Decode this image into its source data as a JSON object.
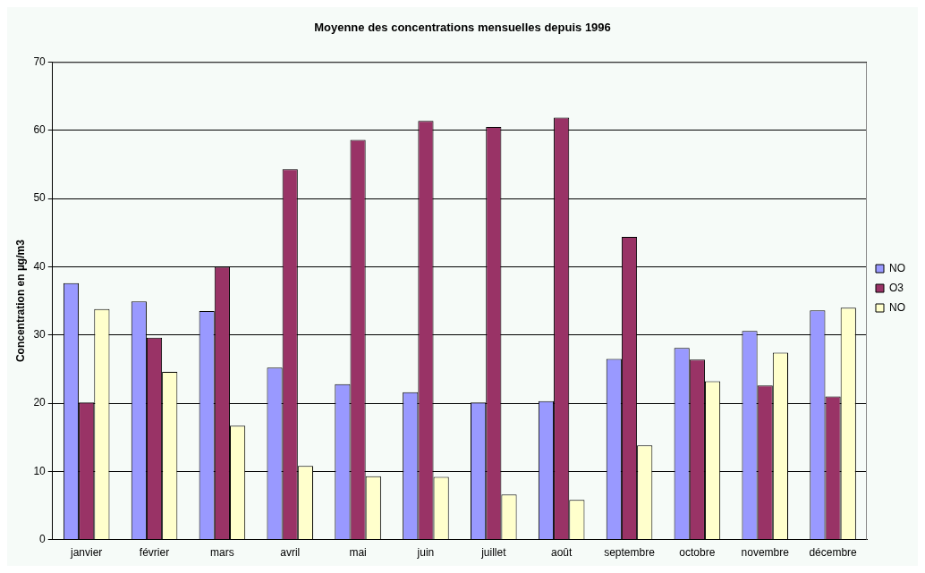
{
  "chart_data": {
    "type": "bar",
    "title": "Moyenne des concentrations mensuelles depuis 1996",
    "ylabel": "Concentration en µg/m3",
    "categories": [
      "janvier",
      "février",
      "mars",
      "avril",
      "mai",
      "juin",
      "juillet",
      "août",
      "septembre",
      "octobre",
      "novembre",
      "décembre"
    ],
    "series": [
      {
        "name": "NO",
        "color": "#9999ff",
        "values": [
          37.6,
          34.9,
          33.5,
          25.2,
          22.8,
          21.6,
          20.1,
          20.3,
          26.5,
          28.1,
          30.6,
          33.6
        ]
      },
      {
        "name": "O3",
        "color": "#993366",
        "values": [
          20.1,
          29.6,
          40.0,
          54.3,
          58.6,
          61.4,
          60.5,
          61.9,
          44.4,
          26.4,
          22.6,
          21.0
        ]
      },
      {
        "name": "NO",
        "color": "#ffffcc",
        "values": [
          33.8,
          24.6,
          16.7,
          10.8,
          9.3,
          9.2,
          6.6,
          5.8,
          13.8,
          23.2,
          27.4,
          34.0
        ]
      }
    ],
    "ylim": [
      0,
      70
    ],
    "yticks": [
      0,
      10,
      20,
      30,
      40,
      50,
      60,
      70
    ],
    "grid": "y",
    "legend": "right"
  }
}
